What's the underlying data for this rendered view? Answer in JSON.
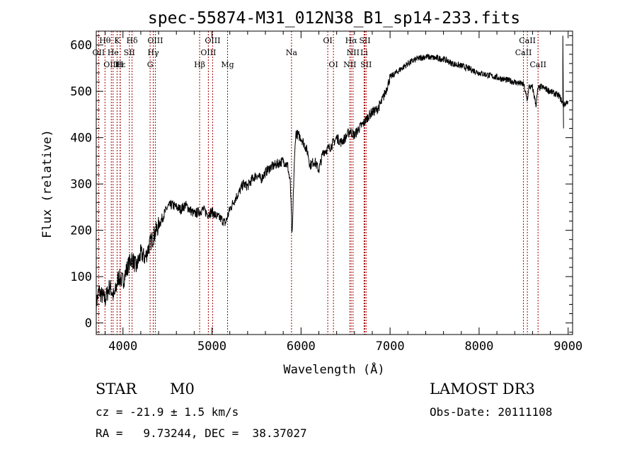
{
  "chart_data": {
    "type": "line",
    "title": "spec-55874-M31_012N38_B1_sp14-233.fits",
    "xlabel": "Wavelength (Å)",
    "ylabel": "Flux (relative)",
    "xlim": [
      3700,
      9050
    ],
    "ylim": [
      -25,
      630
    ],
    "xticks": [
      4000,
      5000,
      6000,
      7000,
      8000,
      9000
    ],
    "yticks": [
      0,
      100,
      200,
      300,
      400,
      500,
      600
    ],
    "series": [
      {
        "name": "spectrum",
        "anchors": [
          [
            3700,
            40
          ],
          [
            3730,
            70
          ],
          [
            3760,
            60
          ],
          [
            3800,
            50
          ],
          [
            3850,
            80
          ],
          [
            3900,
            55
          ],
          [
            3950,
            100
          ],
          [
            4000,
            90
          ],
          [
            4050,
            120
          ],
          [
            4100,
            140
          ],
          [
            4150,
            120
          ],
          [
            4200,
            150
          ],
          [
            4250,
            140
          ],
          [
            4300,
            170
          ],
          [
            4350,
            190
          ],
          [
            4400,
            210
          ],
          [
            4450,
            230
          ],
          [
            4500,
            250
          ],
          [
            4550,
            255
          ],
          [
            4600,
            250
          ],
          [
            4650,
            245
          ],
          [
            4700,
            255
          ],
          [
            4750,
            245
          ],
          [
            4800,
            235
          ],
          [
            4850,
            240
          ],
          [
            4900,
            245
          ],
          [
            4950,
            235
          ],
          [
            5000,
            240
          ],
          [
            5050,
            230
          ],
          [
            5100,
            225
          ],
          [
            5150,
            215
          ],
          [
            5200,
            245
          ],
          [
            5250,
            265
          ],
          [
            5300,
            280
          ],
          [
            5350,
            300
          ],
          [
            5400,
            295
          ],
          [
            5450,
            310
          ],
          [
            5500,
            320
          ],
          [
            5550,
            310
          ],
          [
            5600,
            325
          ],
          [
            5650,
            335
          ],
          [
            5700,
            340
          ],
          [
            5750,
            345
          ],
          [
            5800,
            350
          ],
          [
            5850,
            340
          ],
          [
            5880,
            300
          ],
          [
            5900,
            180
          ],
          [
            5920,
            320
          ],
          [
            5940,
            410
          ],
          [
            6000,
            400
          ],
          [
            6050,
            380
          ],
          [
            6080,
            365
          ],
          [
            6100,
            340
          ],
          [
            6150,
            350
          ],
          [
            6200,
            330
          ],
          [
            6250,
            370
          ],
          [
            6300,
            375
          ],
          [
            6350,
            385
          ],
          [
            6400,
            400
          ],
          [
            6450,
            390
          ],
          [
            6500,
            400
          ],
          [
            6550,
            415
          ],
          [
            6600,
            405
          ],
          [
            6650,
            420
          ],
          [
            6700,
            430
          ],
          [
            6750,
            445
          ],
          [
            6800,
            455
          ],
          [
            6850,
            460
          ],
          [
            6900,
            475
          ],
          [
            6950,
            500
          ],
          [
            7000,
            530
          ],
          [
            7100,
            545
          ],
          [
            7200,
            560
          ],
          [
            7300,
            570
          ],
          [
            7400,
            575
          ],
          [
            7500,
            572
          ],
          [
            7600,
            570
          ],
          [
            7700,
            560
          ],
          [
            7800,
            555
          ],
          [
            7900,
            548
          ],
          [
            8000,
            540
          ],
          [
            8100,
            535
          ],
          [
            8200,
            530
          ],
          [
            8300,
            525
          ],
          [
            8400,
            520
          ],
          [
            8500,
            515
          ],
          [
            8540,
            480
          ],
          [
            8560,
            510
          ],
          [
            8600,
            508
          ],
          [
            8640,
            470
          ],
          [
            8660,
            505
          ],
          [
            8700,
            510
          ],
          [
            8800,
            500
          ],
          [
            8900,
            490
          ],
          [
            8950,
            470
          ],
          [
            9000,
            480
          ]
        ]
      }
    ],
    "spectral_lines": [
      {
        "label": "Hθ",
        "x": 3798,
        "row": 1
      },
      {
        "label": "K",
        "x": 3934,
        "row": 1
      },
      {
        "label": "Hδ",
        "x": 4102,
        "row": 1
      },
      {
        "label": "OIII",
        "x": 4363,
        "row": 1
      },
      {
        "label": "OIII",
        "x": 5007,
        "row": 1
      },
      {
        "label": "OI",
        "x": 6300,
        "row": 1
      },
      {
        "label": "Hα",
        "x": 6563,
        "row": 1
      },
      {
        "label": "SII",
        "x": 6717,
        "row": 1
      },
      {
        "label": "CaII",
        "x": 8542,
        "row": 1
      },
      {
        "label": "OII",
        "x": 3727,
        "row": 2
      },
      {
        "label": "He",
        "x": 3889,
        "row": 2
      },
      {
        "label": "SII",
        "x": 4072,
        "row": 2
      },
      {
        "label": "Hγ",
        "x": 4340,
        "row": 2
      },
      {
        "label": "OIII",
        "x": 4959,
        "row": 2
      },
      {
        "label": "Na",
        "x": 5893,
        "row": 2
      },
      {
        "label": "NII",
        "x": 6584,
        "row": 2
      },
      {
        "label": "Li",
        "x": 6708,
        "row": 2
      },
      {
        "label": "CaII",
        "x": 8498,
        "row": 2
      },
      {
        "label": "OIII",
        "x": 3869,
        "row": 3
      },
      {
        "label": "Hε",
        "x": 3970,
        "row": 3
      },
      {
        "label": "H",
        "x": 3968,
        "row": 3
      },
      {
        "label": "G",
        "x": 4305,
        "row": 3
      },
      {
        "label": "Hβ",
        "x": 4861,
        "row": 3
      },
      {
        "label": "Mg",
        "x": 5175,
        "row": 3
      },
      {
        "label": "OI",
        "x": 6364,
        "row": 3
      },
      {
        "label": "NII",
        "x": 6548,
        "row": 3
      },
      {
        "label": "SII",
        "x": 6731,
        "row": 3
      },
      {
        "label": "CaII",
        "x": 8662,
        "row": 3
      }
    ]
  },
  "info": {
    "class": "STAR",
    "subclass": "M0",
    "survey": "LAMOST DR3",
    "cz": "cz = -21.9 ± 1.5 km/s",
    "obs_date": "Obs-Date: 20111108",
    "radec": "RA =   9.73244, DEC =  38.37027"
  }
}
